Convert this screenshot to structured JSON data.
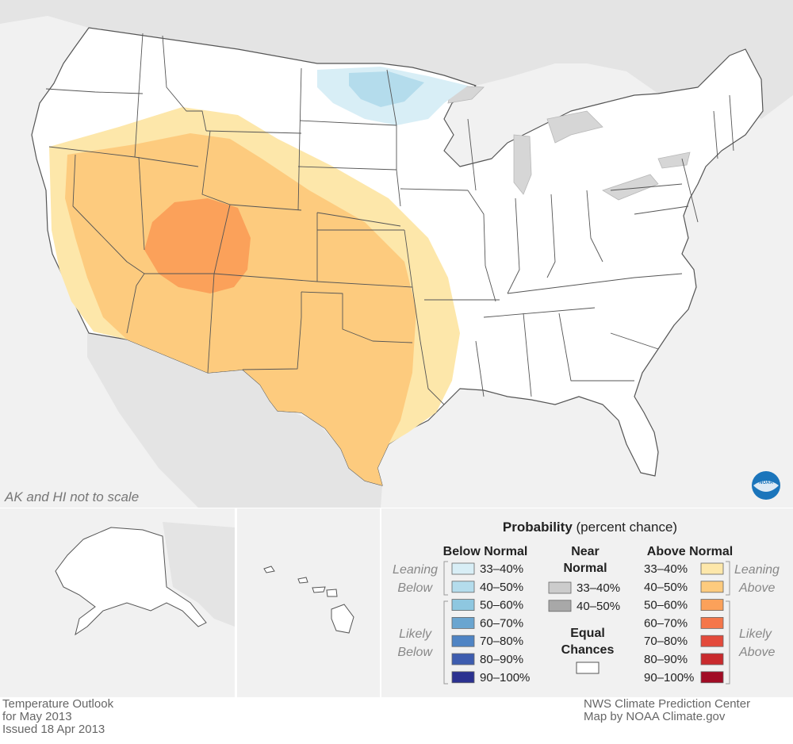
{
  "map": {
    "scale_note": "AK and HI not to scale",
    "legend": {
      "title_bold": "Probability",
      "title_rest": " (percent chance)",
      "below_header": "Below Normal",
      "near_header_line1": "Near",
      "near_header_line2": "Normal",
      "above_header": "Above Normal",
      "leaning_word": "Leaning",
      "below_word": "Below",
      "likely_word": "Likely",
      "above_word": "Above",
      "equal_line1": "Equal",
      "equal_line2": "Chances",
      "below_bins": [
        {
          "label": "33–40%",
          "color": "#d8eef6"
        },
        {
          "label": "40–50%",
          "color": "#b4dcec"
        },
        {
          "label": "50–60%",
          "color": "#8ec7e0"
        },
        {
          "label": "60–70%",
          "color": "#6aa5d0"
        },
        {
          "label": "70–80%",
          "color": "#4f84c4"
        },
        {
          "label": "80–90%",
          "color": "#3d5caf"
        },
        {
          "label": "90–100%",
          "color": "#2b3190"
        }
      ],
      "near_bins": [
        {
          "label": "33–40%",
          "color": "#cccccc"
        },
        {
          "label": "40–50%",
          "color": "#a8a8a8"
        }
      ],
      "above_bins": [
        {
          "label": "33–40%",
          "color": "#fde7aa"
        },
        {
          "label": "40–50%",
          "color": "#fdcb7e"
        },
        {
          "label": "50–60%",
          "color": "#fba15a"
        },
        {
          "label": "60–70%",
          "color": "#f4764a"
        },
        {
          "label": "70–80%",
          "color": "#e34a3b"
        },
        {
          "label": "80–90%",
          "color": "#c92a2d"
        },
        {
          "label": "90–100%",
          "color": "#a10c25"
        }
      ]
    },
    "background_colors": {
      "land_foreign": "#e6e6e6",
      "water": "#f2f2f2",
      "us_land": "#ffffff",
      "border": "#444444"
    },
    "logo_text": "NOAA"
  },
  "footer": {
    "left_line1": "Temperature Outlook",
    "left_line2": "for May 2013",
    "left_line3": "Issued 18 Apr 2013",
    "right_line1": "NWS Climate Prediction Center",
    "right_line2": "Map by NOAA Climate.gov"
  }
}
